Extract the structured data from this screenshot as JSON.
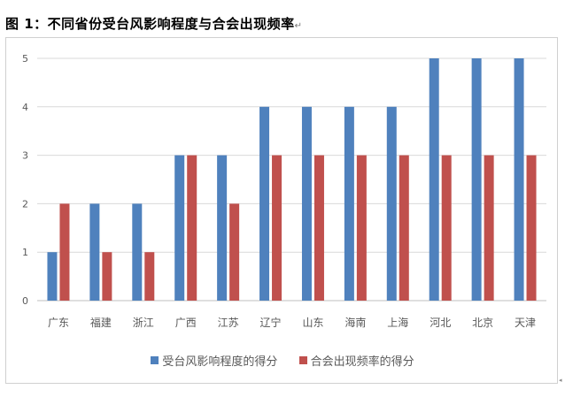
{
  "title": "图 1：不同省份受台风影响程度与合会出现频率",
  "title_mark": "↵",
  "chart_data": {
    "type": "bar",
    "categories": [
      "广东",
      "福建",
      "浙江",
      "广西",
      "江苏",
      "辽宁",
      "山东",
      "海南",
      "上海",
      "河北",
      "北京",
      "天津"
    ],
    "series": [
      {
        "name": "受台风影响程度的得分",
        "color": "#4F81BD",
        "values": [
          1,
          2,
          2,
          3,
          3,
          4,
          4,
          4,
          4,
          5,
          5,
          5
        ]
      },
      {
        "name": "合会出现频率的得分",
        "color": "#C0504D",
        "values": [
          2,
          1,
          1,
          3,
          2,
          3,
          3,
          3,
          3,
          3,
          3,
          3
        ]
      }
    ],
    "yticks": [
      "0",
      "1",
      "2",
      "3",
      "4",
      "5"
    ],
    "ylim": [
      0,
      5
    ],
    "grid": true,
    "legend": "bottom"
  }
}
